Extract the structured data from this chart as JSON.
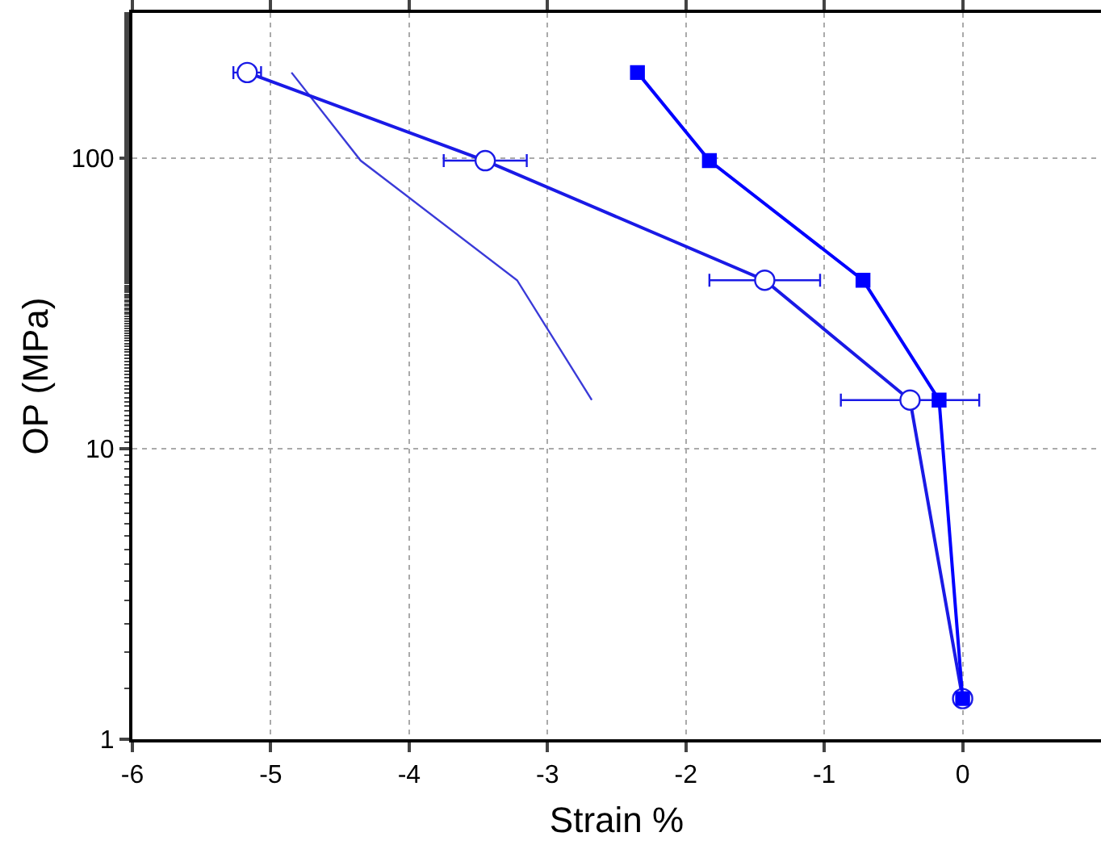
{
  "chart_data": {
    "type": "line",
    "xlabel": "Strain %",
    "ylabel": "OP (MPa)",
    "log": "y",
    "grid": true,
    "line_style": "solid",
    "xlim": [
      -6,
      1
    ],
    "xticks": [
      -6,
      -5,
      -4,
      -3,
      -2,
      -1,
      0
    ],
    "ylim": [
      1,
      316
    ],
    "yticks": [
      1,
      10,
      100
    ],
    "series": [
      {
        "color": "#0000ff",
        "marker": "square",
        "x": [
          -2.35,
          -1.83,
          -0.72,
          -0.17,
          0
        ],
        "values": [
          197,
          98,
          38,
          14.7,
          1.38
        ]
      },
      {
        "color": "#1a1ae6",
        "marker": "circle",
        "x": [
          -5.17,
          -3.45,
          -1.43,
          -0.38,
          0
        ],
        "values": [
          197,
          98,
          38,
          14.7,
          1.38
        ],
        "xerrors": [
          0.1,
          0.3,
          0.4,
          0.5,
          null
        ]
      },
      {
        "color": "#3a3ad8",
        "marker": "none",
        "x": [
          -4.85,
          -4.35,
          -3.22,
          -2.68
        ],
        "values": [
          197,
          98,
          38,
          14.7
        ]
      }
    ]
  }
}
